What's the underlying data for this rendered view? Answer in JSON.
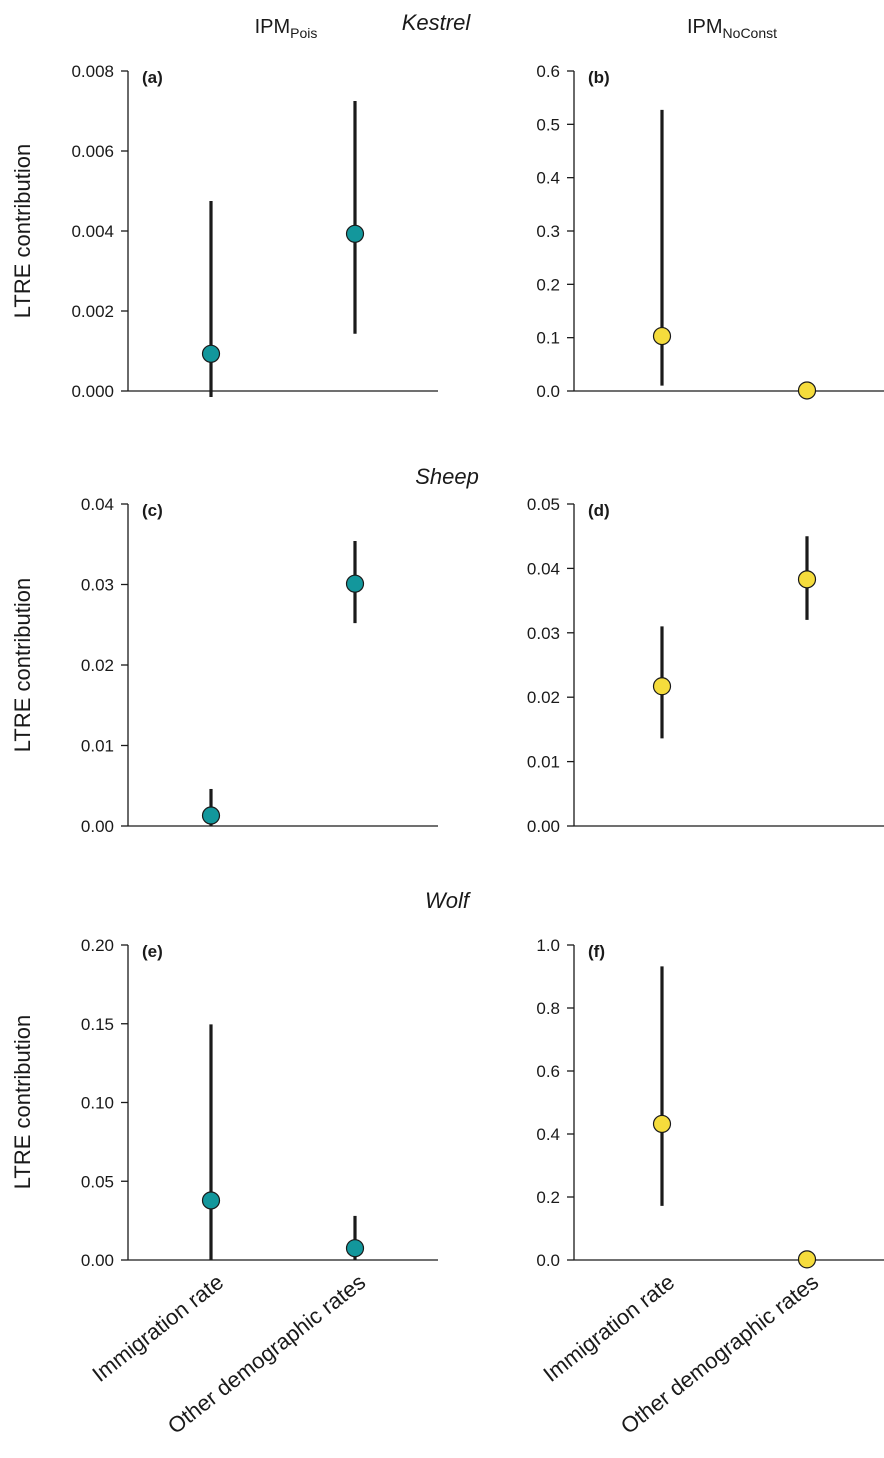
{
  "header": {
    "left": {
      "main": "IPM",
      "sub": "Pois"
    },
    "right": {
      "main": "IPM",
      "sub": "NoConst"
    }
  },
  "ylabel": "LTRE contribution",
  "categories": [
    "Immigration rate",
    "Other demographic rates"
  ],
  "colors": {
    "teal": "#13979c",
    "yellow": "#f5dc3c"
  },
  "chart_data": [
    {
      "type": "scatter",
      "panel": "(a)",
      "species": "Kestrel",
      "model": "IPM_Pois",
      "categories": [
        "Immigration rate",
        "Other demographic rates"
      ],
      "ylim": [
        0,
        0.008
      ],
      "yticks": [
        "0.000",
        "0.002",
        "0.004",
        "0.006",
        "0.008"
      ],
      "values": [
        0.00093,
        0.00393
      ],
      "lower": [
        -0.00015,
        0.00143
      ],
      "upper": [
        0.00475,
        0.00725
      ],
      "color": "#13979c"
    },
    {
      "type": "scatter",
      "panel": "(b)",
      "species": "Kestrel",
      "model": "IPM_NoConst",
      "categories": [
        "Immigration rate",
        "Other demographic rates"
      ],
      "ylim": [
        0,
        0.6
      ],
      "yticks": [
        "0.0",
        "0.1",
        "0.2",
        "0.3",
        "0.4",
        "0.5",
        "0.6"
      ],
      "values": [
        0.103,
        0.001
      ],
      "lower": [
        0.01,
        null
      ],
      "upper": [
        0.527,
        null
      ],
      "color": "#f5dc3c"
    },
    {
      "type": "scatter",
      "panel": "(c)",
      "species": "Sheep",
      "model": "IPM_Pois",
      "categories": [
        "Immigration rate",
        "Other demographic rates"
      ],
      "ylim": [
        0,
        0.04
      ],
      "yticks": [
        "0.00",
        "0.01",
        "0.02",
        "0.03",
        "0.04"
      ],
      "values": [
        0.0013,
        0.0301
      ],
      "lower": [
        0.0,
        0.0252
      ],
      "upper": [
        0.0046,
        0.0354
      ],
      "color": "#13979c"
    },
    {
      "type": "scatter",
      "panel": "(d)",
      "species": "Sheep",
      "model": "IPM_NoConst",
      "categories": [
        "Immigration rate",
        "Other demographic rates"
      ],
      "ylim": [
        0,
        0.05
      ],
      "yticks": [
        "0.00",
        "0.01",
        "0.02",
        "0.03",
        "0.04",
        "0.05"
      ],
      "values": [
        0.0217,
        0.0383
      ],
      "lower": [
        0.0136,
        0.032
      ],
      "upper": [
        0.031,
        0.045
      ],
      "color": "#f5dc3c"
    },
    {
      "type": "scatter",
      "panel": "(e)",
      "species": "Wolf",
      "model": "IPM_Pois",
      "categories": [
        "Immigration rate",
        "Other demographic rates"
      ],
      "ylim": [
        0,
        0.2
      ],
      "yticks": [
        "0.00",
        "0.05",
        "0.10",
        "0.15",
        "0.20"
      ],
      "values": [
        0.0378,
        0.0075
      ],
      "lower": [
        0.0,
        0.0
      ],
      "upper": [
        0.1496,
        0.028
      ],
      "color": "#13979c"
    },
    {
      "type": "scatter",
      "panel": "(f)",
      "species": "Wolf",
      "model": "IPM_NoConst",
      "categories": [
        "Immigration rate",
        "Other demographic rates"
      ],
      "ylim": [
        0,
        1.0
      ],
      "yticks": [
        "0.0",
        "0.2",
        "0.4",
        "0.6",
        "0.8",
        "1.0"
      ],
      "values": [
        0.432,
        0.002
      ],
      "lower": [
        0.172,
        null
      ],
      "upper": [
        0.932,
        null
      ],
      "color": "#f5dc3c"
    }
  ]
}
